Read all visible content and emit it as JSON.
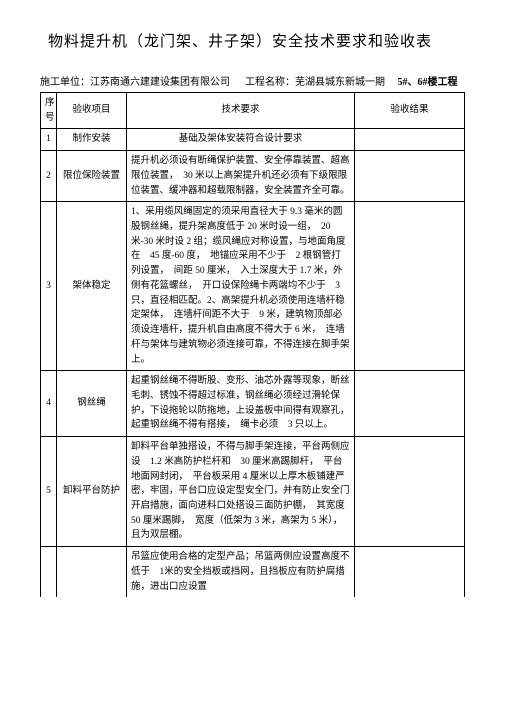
{
  "title": "物料提升机（龙门架、井子架）安全技术要求和验收表",
  "meta": {
    "unit_label": "施工单位：",
    "unit_value": "江苏南通六建建设集团有限公司",
    "project_label": "工程名称：",
    "project_value": "芜湖县城东新城一期",
    "building": "5#、6#楼工程"
  },
  "headers": {
    "index": "序号",
    "item": "验收项目",
    "requirement": "技术要求",
    "result": "验收结果"
  },
  "rows": [
    {
      "idx": "1",
      "item": "制作安装",
      "req": "基础及架体安装符合设计要求",
      "req_align": "center"
    },
    {
      "idx": "2",
      "item": "限位保险装置",
      "req": "提升机必须设有断绳保护装置、安全停靠装置、超高限位装置，　30 米以上高架提升机还必须有下级限限位装置、缓冲器和超载限制器，安全装置齐全可靠。"
    },
    {
      "idx": "3",
      "item": "架体稳定",
      "req": "1、采用缆风绳固定的须采用直径大于 9.3 毫米的圆股钢丝绳，提升架高度低于 20 米时设一组，　20 米-30 米时设 2 组；缆风绳应对称设置，与地面角度在　45 度-60 度，　地锚应采用不少于　2 根钢管打列设置，　间距 50 厘米，　入土深度大于 1.7 米，外侧有花篮螺丝，　开口设保险绳卡两端均不少于　3 只，直径相匹配。2、高架提升机必须使用连墙杆稳定架体，　连墙杆间距不大于　9 米，建筑物顶部必须设连墙杆，提升机自由高度不得大于 6 米，　连墙杆与架体与建筑物必须连接可靠，不得连接在脚手架上。"
    },
    {
      "idx": "4",
      "item": "钢丝绳",
      "req": "起重钢丝绳不得断股、变形、油芯外露等现象，断丝毛刺、锈蚀不得超过标准，钢丝绳必须经过滑轮保护，下设拖轮以防拖地，上设盖板中间得有观察孔，　起重钢丝绳不得有搭接，　绳卡必须　3 只以上。"
    },
    {
      "idx": "5",
      "item": "卸料平台防护",
      "req": "卸料平台单独搭设，不得与脚手架连接，平台两侧应设　1.2 米高防护栏杆和　30 厘米高踢脚杆，　平台地面网封闭，　平台板采用 4 厘米以上厚木板铺建严密，牢固，平台口应设定型安全门，并有防止安全门开启措施，面向进料口处搭设三面防护棚，　其宽度　50 厘米踢脚，　宽度（低架为 3 米，高架为 5 米），且为双层棚。"
    },
    {
      "idx": "",
      "item": "",
      "req": "吊篮应使用合格的定型产品；吊篮两侧应设置高度不低于　1米的安全挡板或挡网，且挡板应有防护腐措施，进出口应设置",
      "partial": true
    }
  ]
}
